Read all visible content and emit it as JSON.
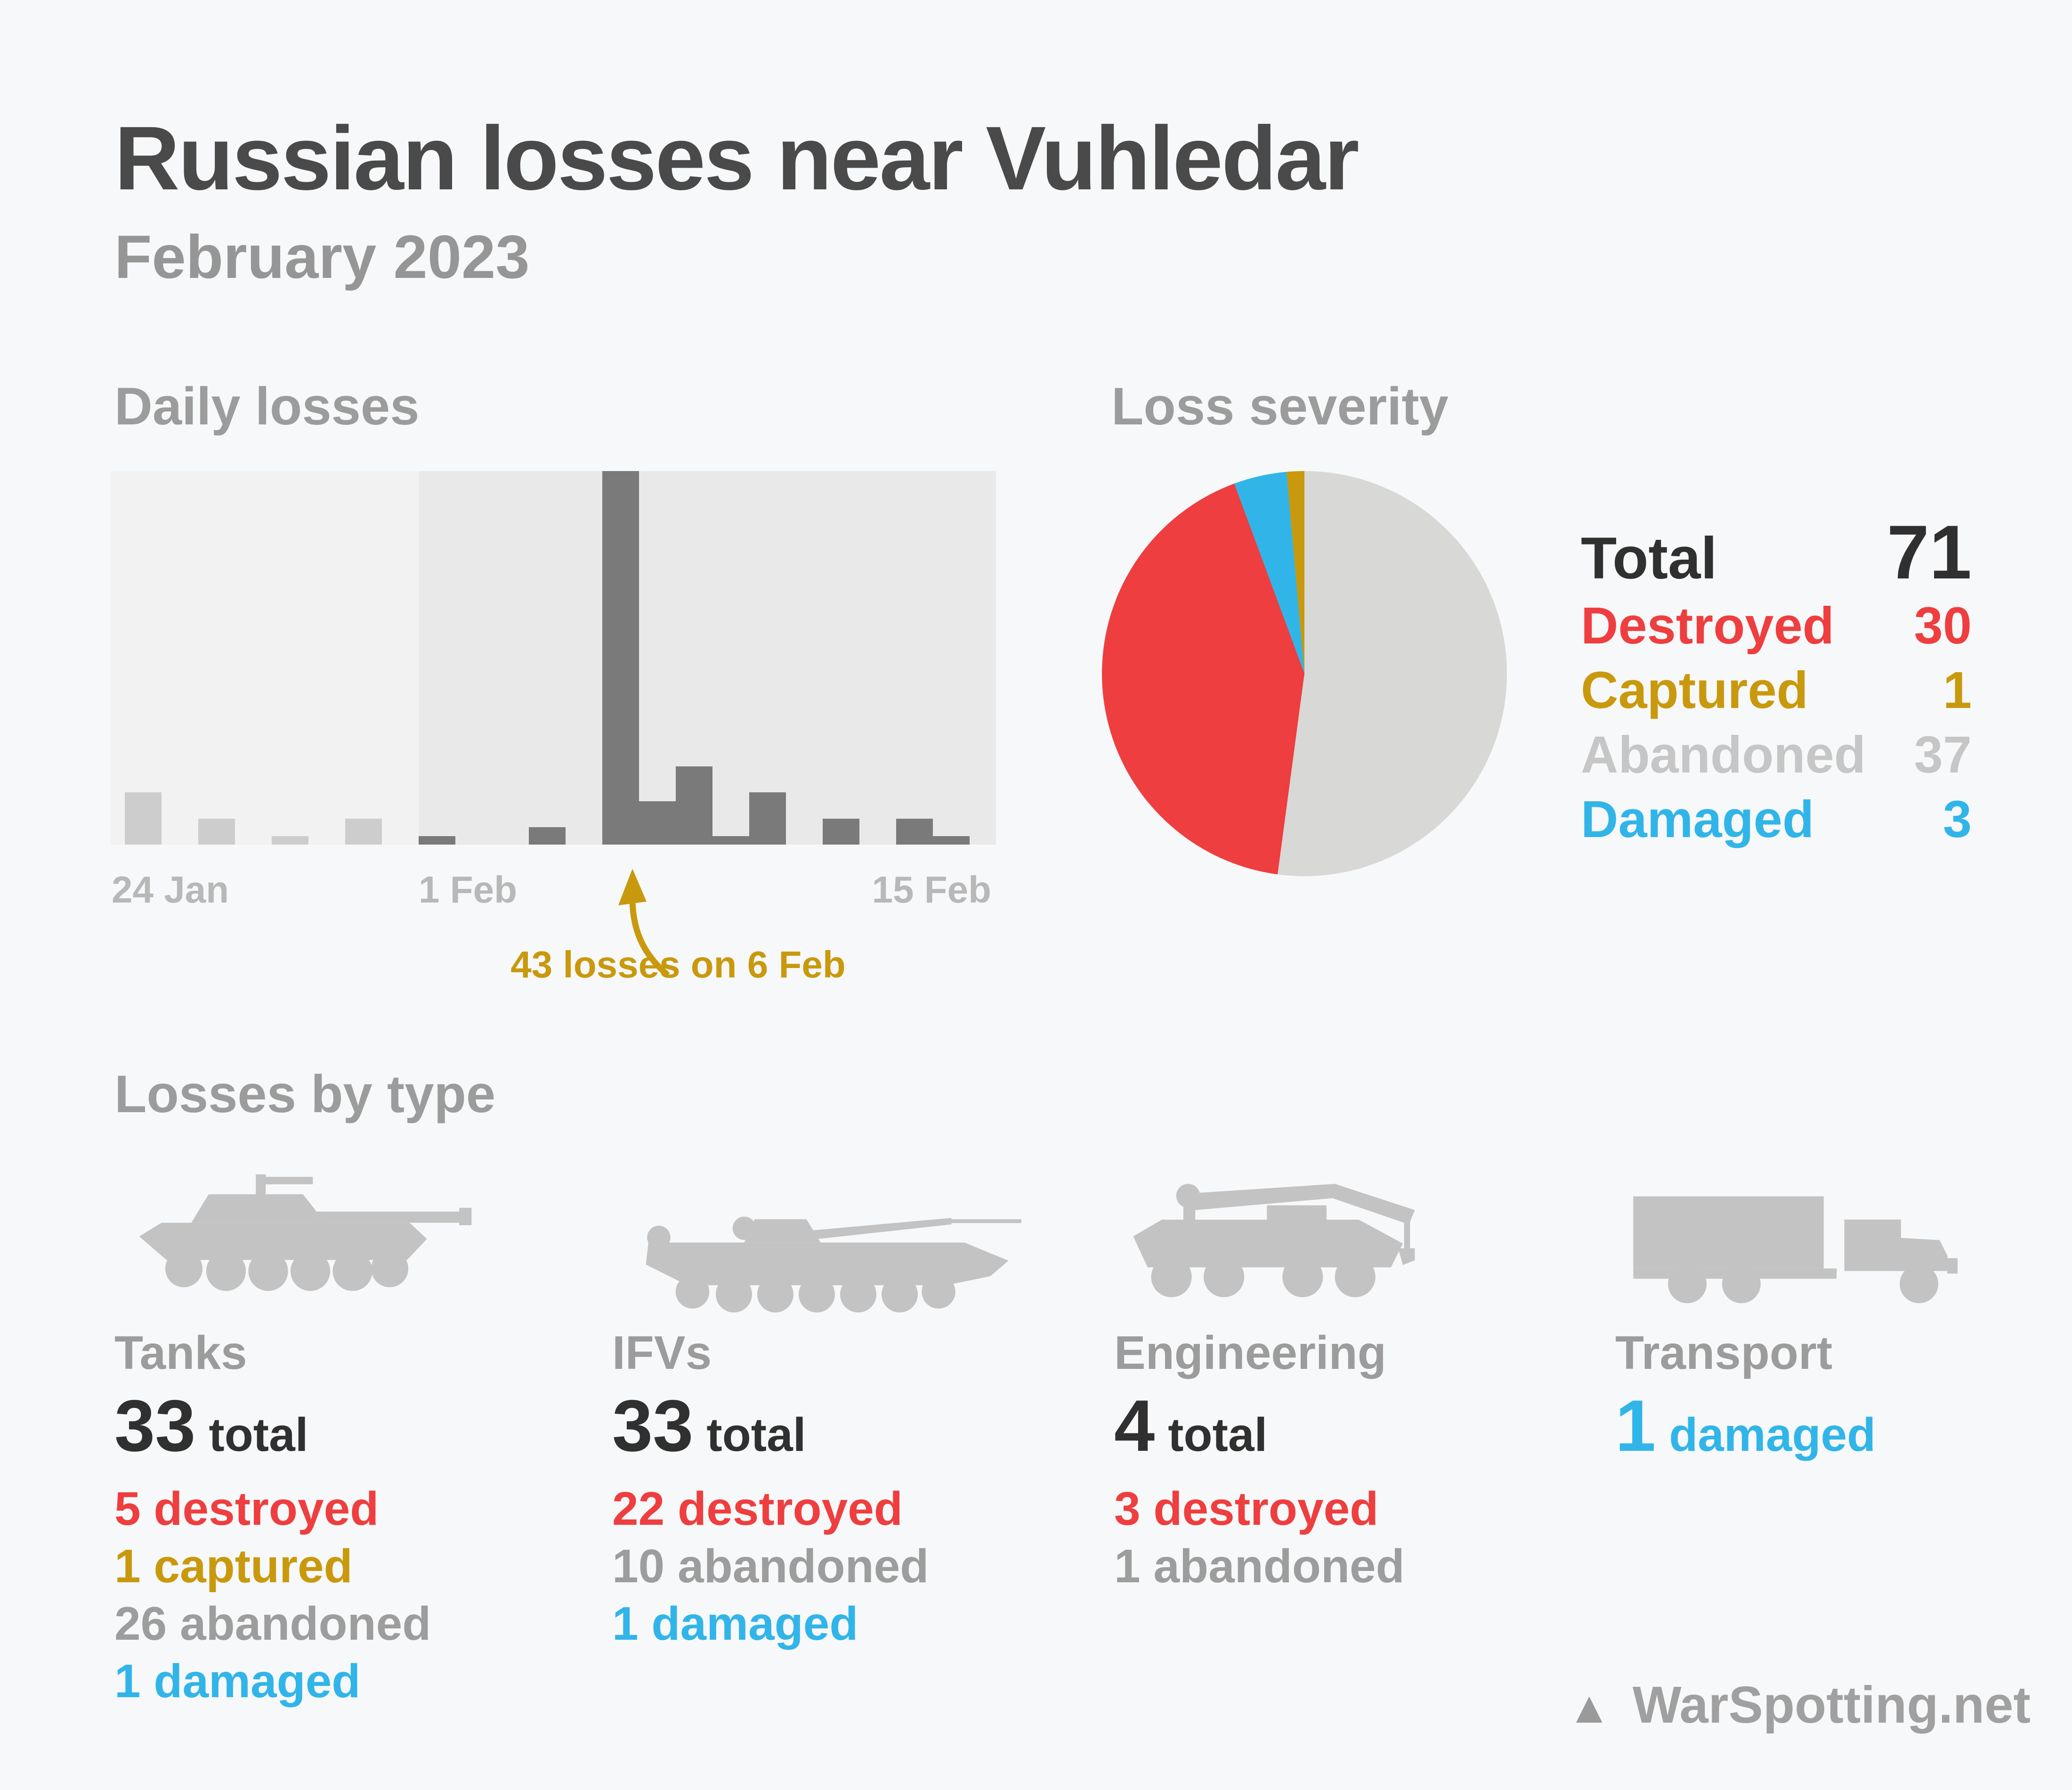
{
  "header": {
    "title": "Russian losses near Vuhledar",
    "subtitle": "February 2023"
  },
  "daily": {
    "section_title": "Daily losses",
    "axis_labels": [
      "24 Jan",
      "1 Feb",
      "15 Feb"
    ],
    "annotation": "43 losses on 6 Feb"
  },
  "severity": {
    "section_title": "Loss severity",
    "total_label": "Total",
    "total_value": "71",
    "rows": [
      {
        "label": "Destroyed",
        "value": "30",
        "color": "#ee3e3f"
      },
      {
        "label": "Captured",
        "value": "1",
        "color": "#c9990d"
      },
      {
        "label": "Abandoned",
        "value": "37",
        "color": "#c6c6c6"
      },
      {
        "label": "Damaged",
        "value": "3",
        "color": "#31b5e9"
      }
    ]
  },
  "types": {
    "section_title": "Losses by type",
    "items": [
      {
        "label": "Tanks",
        "icon": "tank-icon",
        "total_number": "33",
        "total_suffix": "total",
        "total_color": "#303030",
        "rows": [
          {
            "text": "5 destroyed",
            "status": "destroyed"
          },
          {
            "text": "1 captured",
            "status": "captured"
          },
          {
            "text": "26 abandoned",
            "status": "abandoned"
          },
          {
            "text": "1 damaged",
            "status": "damaged"
          }
        ]
      },
      {
        "label": "IFVs",
        "icon": "ifv-icon",
        "total_number": "33",
        "total_suffix": "total",
        "total_color": "#303030",
        "rows": [
          {
            "text": "22 destroyed",
            "status": "destroyed"
          },
          {
            "text": "10 abandoned",
            "status": "abandoned"
          },
          {
            "text": "1 damaged",
            "status": "damaged"
          }
        ]
      },
      {
        "label": "Engineering",
        "icon": "engineering-icon",
        "total_number": "4",
        "total_suffix": "total",
        "total_color": "#303030",
        "rows": [
          {
            "text": "3 destroyed",
            "status": "destroyed"
          },
          {
            "text": "1 abandoned",
            "status": "abandoned"
          }
        ]
      },
      {
        "label": "Transport",
        "icon": "truck-icon",
        "total_number": "1",
        "total_suffix": "damaged",
        "total_color": "#31b5e9",
        "rows": []
      }
    ]
  },
  "footer": {
    "brand": "WarSpotting.net",
    "triangle": "▲"
  },
  "colors": {
    "page_bg": "#f7f8f9",
    "jan_plot_bg": "#f2f2f2",
    "feb_plot_bg": "#e9e9ea",
    "jan_bar": "#cdcdcd",
    "feb_bar": "#7a7a7a",
    "accent_gold": "#c9990d",
    "status": {
      "destroyed": "#ee3e3f",
      "captured": "#c9990d",
      "abandoned": "#9d9d9d",
      "damaged": "#31b5e9"
    }
  },
  "chart_data": [
    {
      "type": "bar",
      "title": "Daily losses",
      "categories": [
        "24 Jan",
        "25 Jan",
        "26 Jan",
        "27 Jan",
        "28 Jan",
        "29 Jan",
        "30 Jan",
        "31 Jan",
        "1 Feb",
        "2 Feb",
        "3 Feb",
        "4 Feb",
        "5 Feb",
        "6 Feb",
        "7 Feb",
        "8 Feb",
        "9 Feb",
        "10 Feb",
        "11 Feb",
        "12 Feb",
        "13 Feb",
        "14 Feb",
        "15 Feb"
      ],
      "values": [
        6,
        0,
        3,
        0,
        1,
        0,
        3,
        0,
        1,
        0,
        0,
        2,
        0,
        43,
        5,
        9,
        1,
        6,
        0,
        3,
        0,
        3,
        1
      ],
      "series_colors_rule": "January bars light gray, February bars dark gray",
      "xlabel": "",
      "ylabel": "",
      "ylim": [
        0,
        43
      ],
      "grid": false,
      "annotation": {
        "text": "43 losses on 6 Feb",
        "target_category": "6 Feb",
        "value": 43
      }
    },
    {
      "type": "pie",
      "title": "Loss severity",
      "total": 71,
      "start_angle_deg": 0,
      "direction": "clockwise",
      "slices": [
        {
          "name": "Abandoned",
          "value": 37,
          "color": "#d8d8d6"
        },
        {
          "name": "Destroyed",
          "value": 30,
          "color": "#ee3e3f"
        },
        {
          "name": "Damaged",
          "value": 3,
          "color": "#31b5e9"
        },
        {
          "name": "Captured",
          "value": 1,
          "color": "#c9990d"
        }
      ],
      "legend_position": "right"
    }
  ]
}
